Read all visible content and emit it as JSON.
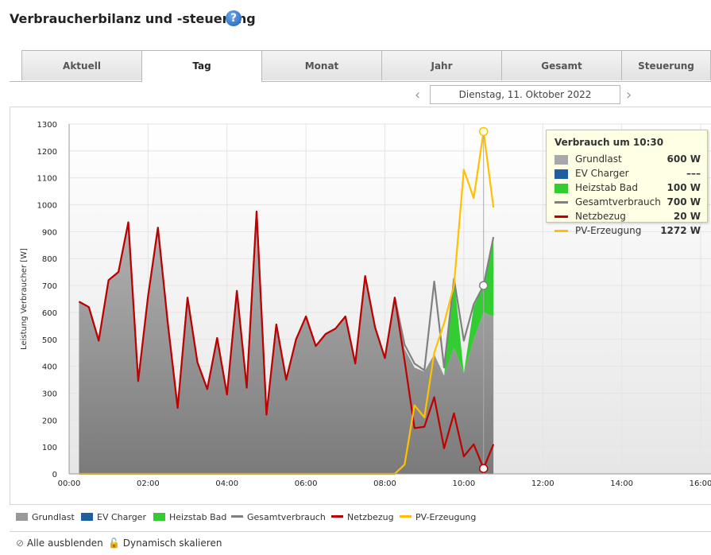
{
  "header": {
    "title": "Verbraucherbilanz und -steuerung",
    "help_glyph": "?"
  },
  "tabs": [
    {
      "label": "Aktuell",
      "active": false
    },
    {
      "label": "Tag",
      "active": true
    },
    {
      "label": "Monat",
      "active": false
    },
    {
      "label": "Jahr",
      "active": false
    },
    {
      "label": "Gesamt",
      "active": false
    },
    {
      "label": "Steuerung",
      "active": false
    }
  ],
  "date_nav": {
    "prev": "‹",
    "next": "›",
    "date": "Dienstag, 11. Oktober 2022"
  },
  "tooltip": {
    "title": "Verbrauch um 10:30",
    "rows": [
      {
        "name": "Grundlast",
        "value": "600 W",
        "color": "#a8a8a8",
        "kind": "box"
      },
      {
        "name": "EV Charger",
        "value": "–––",
        "color": "#1f5fa0",
        "kind": "box"
      },
      {
        "name": "Heizstab Bad",
        "value": "100 W",
        "color": "#33cc33",
        "kind": "box"
      },
      {
        "name": "Gesamtverbrauch",
        "value": "700 W",
        "color": "#808080",
        "kind": "line"
      },
      {
        "name": "Netzbezug",
        "value": "20 W",
        "color": "#c00000",
        "kind": "line"
      },
      {
        "name": "PV-Erzeugung",
        "value": "1272 W",
        "color": "#ffc000",
        "kind": "line"
      }
    ]
  },
  "legend": [
    {
      "label": "Grundlast",
      "color": "#999999",
      "kind": "box"
    },
    {
      "label": "EV Charger",
      "color": "#1f5fa0",
      "kind": "box"
    },
    {
      "label": "Heizstab Bad",
      "color": "#33cc33",
      "kind": "box"
    },
    {
      "label": "Gesamtverbrauch",
      "color": "#808080",
      "kind": "line"
    },
    {
      "label": "Netzbezug",
      "color": "#c00000",
      "kind": "line"
    },
    {
      "label": "PV-Erzeugung",
      "color": "#ffc000",
      "kind": "line"
    }
  ],
  "footer": {
    "hide_all": "Alle ausblenden",
    "dynamic_scale": "Dynamisch skalieren"
  },
  "chart_data": {
    "type": "area",
    "title": "",
    "xlabel": "",
    "ylabel": "Leistung Verbraucher [W]",
    "xlim": [
      0,
      16
    ],
    "ylim": [
      0,
      1300
    ],
    "y_ticks": [
      "0",
      "100",
      "200",
      "300",
      "400",
      "500",
      "600",
      "700",
      "800",
      "900",
      "1000",
      "1100",
      "1200",
      "1300"
    ],
    "x_ticks": [
      "00:00",
      "02:00",
      "04:00",
      "06:00",
      "08:00",
      "10:00",
      "12:00",
      "14:00",
      "16:00"
    ],
    "x_hours": [
      0.25,
      0.5,
      0.75,
      1,
      1.25,
      1.5,
      1.75,
      2,
      2.25,
      2.5,
      2.75,
      3,
      3.25,
      3.5,
      3.75,
      4,
      4.25,
      4.5,
      4.75,
      5,
      5.25,
      5.5,
      5.75,
      6,
      6.25,
      6.5,
      6.75,
      7,
      7.25,
      7.5,
      7.75,
      8,
      8.25,
      8.5,
      8.75,
      9,
      9.25,
      9.5,
      9.75,
      10,
      10.25,
      10.5,
      10.75
    ],
    "series": [
      {
        "name": "Grundlast",
        "color": "#999999",
        "values": [
          640,
          620,
          495,
          720,
          750,
          935,
          345,
          660,
          915,
          560,
          245,
          655,
          415,
          315,
          505,
          295,
          680,
          320,
          975,
          220,
          555,
          350,
          500,
          585,
          475,
          520,
          540,
          585,
          410,
          735,
          545,
          430,
          655,
          465,
          395,
          380,
          445,
          365,
          470,
          375,
          500,
          600,
          585
        ]
      },
      {
        "name": "Heizstab Bad",
        "color": "#33cc33",
        "values": [
          0,
          0,
          0,
          0,
          0,
          0,
          0,
          0,
          0,
          0,
          0,
          0,
          0,
          0,
          0,
          0,
          0,
          0,
          0,
          0,
          0,
          0,
          0,
          0,
          0,
          0,
          0,
          0,
          0,
          0,
          0,
          0,
          0,
          0,
          0,
          0,
          0,
          0,
          260,
          0,
          120,
          100,
          290
        ]
      },
      {
        "name": "Gesamtverbrauch",
        "color": "#808080",
        "values": [
          640,
          620,
          495,
          720,
          750,
          935,
          345,
          660,
          915,
          560,
          245,
          655,
          415,
          315,
          505,
          295,
          680,
          320,
          975,
          220,
          555,
          350,
          500,
          585,
          475,
          520,
          540,
          585,
          410,
          735,
          545,
          430,
          655,
          480,
          410,
          385,
          715,
          395,
          725,
          495,
          630,
          700,
          880
        ]
      },
      {
        "name": "Netzbezug",
        "color": "#c00000",
        "values": [
          640,
          620,
          495,
          720,
          750,
          935,
          345,
          660,
          915,
          560,
          245,
          655,
          415,
          315,
          505,
          295,
          680,
          320,
          975,
          220,
          555,
          350,
          500,
          585,
          475,
          520,
          540,
          585,
          410,
          735,
          545,
          430,
          655,
          420,
          170,
          175,
          285,
          95,
          225,
          65,
          110,
          20,
          110
        ]
      },
      {
        "name": "PV-Erzeugung",
        "color": "#ffc000",
        "values": [
          0,
          0,
          0,
          0,
          0,
          0,
          0,
          0,
          0,
          0,
          0,
          0,
          0,
          0,
          0,
          0,
          0,
          0,
          0,
          0,
          0,
          0,
          0,
          0,
          0,
          0,
          0,
          0,
          0,
          0,
          0,
          0,
          0,
          35,
          255,
          210,
          450,
          560,
          700,
          1130,
          1025,
          1272,
          990
        ]
      }
    ],
    "marker_time": 10.5
  }
}
